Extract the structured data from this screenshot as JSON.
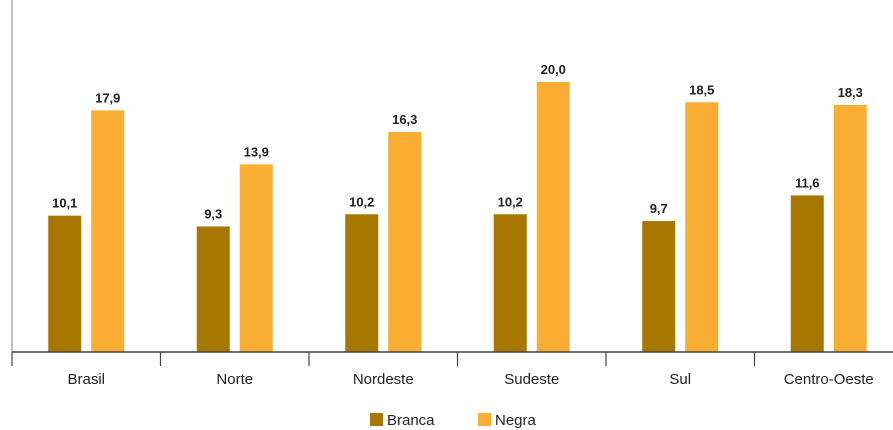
{
  "chart_data": {
    "type": "bar",
    "categories": [
      "Brasil",
      "Norte",
      "Nordeste",
      "Sudeste",
      "Sul",
      "Centro-Oeste"
    ],
    "series": [
      {
        "name": "Branca",
        "color": "#A87700",
        "values": [
          10.1,
          9.3,
          10.2,
          10.2,
          9.7,
          11.6
        ],
        "labels": [
          "10,1",
          "9,3",
          "10,2",
          "10,2",
          "9,7",
          "11,6"
        ]
      },
      {
        "name": "Negra",
        "color": "#F9AE33",
        "values": [
          17.9,
          13.9,
          16.3,
          20.0,
          18.5,
          18.3
        ],
        "labels": [
          "17,9",
          "13,9",
          "16,3",
          "20,0",
          "18,5",
          "18,3"
        ]
      }
    ],
    "ylim": [
      0,
      22
    ],
    "grid": false,
    "legend_position": "bottom-center"
  }
}
